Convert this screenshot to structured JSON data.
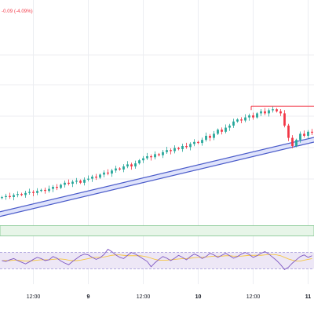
{
  "header": {
    "change_label": "-0.09 (-4.09%)",
    "change_color": "#f23645"
  },
  "colors": {
    "up": "#26a69a",
    "down": "#f23645",
    "trendline": "#4a5bc9",
    "trendline_fill": "#dfe3fb",
    "zone_fill": "#e7f5e8",
    "zone_border": "#7cc38a",
    "resistance": "#f23645",
    "rsi_line": "#7e57c2",
    "rsi_ma": "#f5c542",
    "rsi_band": "#ede7f6",
    "rsi_bound": "#9c8fd6",
    "grid": "#eceef2"
  },
  "chart_data": [
    {
      "type": "candlestick",
      "title": "",
      "x_ticks": [
        {
          "label": "12:00",
          "bold": false,
          "candle_index": 8
        },
        {
          "label": "9",
          "bold": true,
          "candle_index": 22
        },
        {
          "label": "12:00",
          "bold": false,
          "candle_index": 36
        },
        {
          "label": "10",
          "bold": true,
          "candle_index": 50
        },
        {
          "label": "12:00",
          "bold": false,
          "candle_index": 64
        },
        {
          "label": "11",
          "bold": true,
          "candle_index": 78
        }
      ],
      "ylim": [
        0,
        100
      ],
      "close": [
        15,
        15.5,
        15,
        16,
        16.5,
        16,
        17,
        17.5,
        17,
        18,
        18.5,
        18,
        19,
        20,
        19.5,
        21,
        22,
        21.5,
        22.5,
        23,
        22,
        23.5,
        24,
        25,
        24.5,
        26,
        27,
        26.5,
        28,
        29,
        28.5,
        30,
        31,
        30,
        31.5,
        33,
        34,
        35,
        34.5,
        36,
        35.5,
        37,
        38,
        37.5,
        39,
        38.5,
        40,
        39.5,
        41,
        42,
        41.5,
        43,
        45,
        44,
        46,
        48,
        47,
        49,
        50,
        52,
        53,
        52.5,
        54,
        55,
        54,
        56,
        57,
        56,
        57.5,
        58,
        57,
        56,
        50,
        44,
        40,
        43,
        46,
        45,
        47,
        46.5
      ],
      "trendline": {
        "from": [
          0,
          8
        ],
        "to": [
          79,
          44
        ]
      },
      "resistance": {
        "level": 59.5,
        "from_index": 64,
        "to_index": 79
      },
      "support_zone": {
        "low": -4,
        "high": 1
      }
    },
    {
      "type": "line",
      "title": "",
      "ylim": [
        0,
        100
      ],
      "band": [
        30,
        70
      ],
      "rsi": [
        50,
        48,
        52,
        55,
        50,
        46,
        42,
        47,
        53,
        58,
        55,
        50,
        52,
        60,
        56,
        49,
        44,
        40,
        48,
        55,
        62,
        66,
        64,
        58,
        53,
        57,
        65,
        78,
        72,
        64,
        58,
        55,
        63,
        70,
        66,
        60,
        54,
        48,
        35,
        45,
        53,
        60,
        56,
        50,
        56,
        63,
        58,
        52,
        60,
        66,
        62,
        55,
        60,
        68,
        64,
        58,
        63,
        68,
        62,
        56,
        60,
        66,
        70,
        65,
        58,
        62,
        68,
        72,
        66,
        58,
        50,
        40,
        28,
        34,
        44,
        52,
        60,
        64,
        58,
        62
      ],
      "rsi_ma": [
        50,
        50,
        50,
        51,
        51,
        50,
        49,
        49,
        50,
        51,
        52,
        52,
        52,
        53,
        54,
        54,
        53,
        51,
        50,
        50,
        51,
        53,
        55,
        57,
        58,
        58,
        59,
        61,
        63,
        64,
        64,
        63,
        62,
        62,
        62,
        62,
        61,
        59,
        56,
        53,
        51,
        51,
        51,
        52,
        53,
        54,
        55,
        55,
        56,
        57,
        58,
        58,
        59,
        60,
        61,
        61,
        61,
        62,
        62,
        61,
        61,
        61,
        62,
        63,
        63,
        63,
        63,
        64,
        65,
        65,
        64,
        62,
        58,
        54,
        51,
        49,
        49,
        51,
        53,
        55
      ]
    }
  ]
}
